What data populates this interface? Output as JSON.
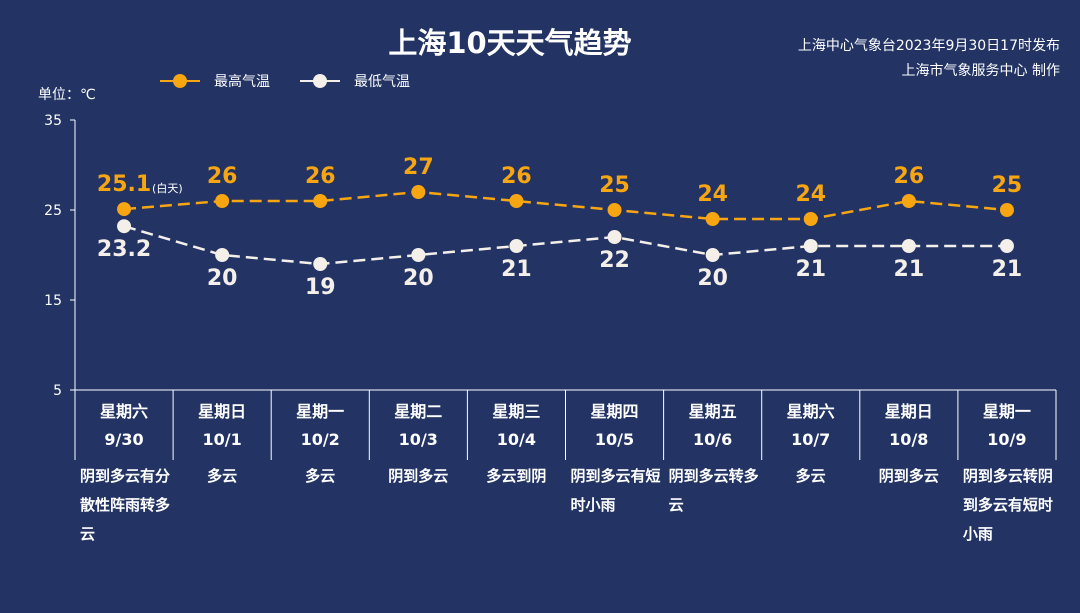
{
  "header": {
    "title": "上海10天天气趋势",
    "issuer_line1": "上海中心气象台2023年9月30日17时发布",
    "issuer_line2": "上海市气象服务中心 制作"
  },
  "legend": {
    "high_label": "最高气温",
    "low_label": "最低气温"
  },
  "unit_label": "单位：℃",
  "colors": {
    "background": "#223364",
    "high": "#f7a612",
    "low": "#f4efe9",
    "axis": "#ffffff"
  },
  "chart_data": {
    "type": "line",
    "categories": [
      "9/30",
      "10/1",
      "10/2",
      "10/3",
      "10/4",
      "10/5",
      "10/6",
      "10/7",
      "10/8",
      "10/9"
    ],
    "weekdays": [
      "星期六",
      "星期日",
      "星期一",
      "星期二",
      "星期三",
      "星期四",
      "星期五",
      "星期六",
      "星期日",
      "星期一"
    ],
    "weather": [
      "阴到多云有分散性阵雨转多云",
      "多云",
      "多云",
      "阴到多云",
      "多云到阴",
      "阴到多云有短时小雨",
      "阴到多云转多云",
      "多云",
      "阴到多云",
      "阴到多云转阴到多云有短时小雨"
    ],
    "series": [
      {
        "name": "最高气温",
        "values": [
          25.1,
          26,
          26,
          27,
          26,
          25,
          24,
          24,
          26,
          25
        ]
      },
      {
        "name": "最低气温",
        "values": [
          23.2,
          20,
          19,
          20,
          21,
          22,
          20,
          21,
          21,
          21
        ]
      }
    ],
    "annotations": [
      {
        "series": 0,
        "index": 0,
        "text": "(白天)"
      }
    ],
    "ylim": [
      5,
      35
    ],
    "yticks": [
      5,
      15,
      25,
      35
    ],
    "grid": false,
    "legend_position": "top-left"
  }
}
